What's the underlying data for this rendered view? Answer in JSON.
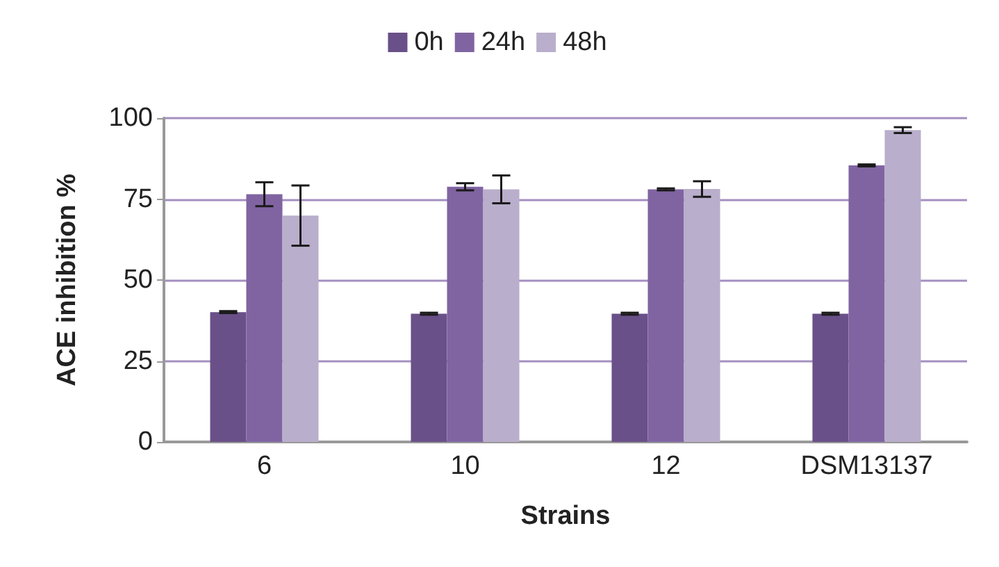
{
  "chart_data": {
    "type": "bar",
    "xlabel": "Strains",
    "ylabel": "ACE inhibition %",
    "categories": [
      "6",
      "10",
      "12",
      "DSM13137"
    ],
    "series": [
      {
        "name": "0h",
        "color": "#6a5088",
        "values": [
          40.1,
          39.6,
          39.6,
          39.6
        ],
        "errors": [
          0.3,
          0.3,
          0.3,
          0.3
        ]
      },
      {
        "name": "24h",
        "color": "#8064a2",
        "values": [
          76.5,
          78.8,
          78.0,
          85.4
        ],
        "errors": [
          3.7,
          1.1,
          0.3,
          0.3
        ]
      },
      {
        "name": "48h",
        "color": "#b9aecb",
        "values": [
          69.9,
          78.0,
          78.1,
          96.3
        ],
        "errors": [
          9.3,
          4.3,
          2.4,
          0.9
        ]
      }
    ],
    "ylim": [
      0,
      100
    ],
    "yticks": [
      0,
      25,
      50,
      75,
      100
    ],
    "grid": "y",
    "legend": "top"
  }
}
